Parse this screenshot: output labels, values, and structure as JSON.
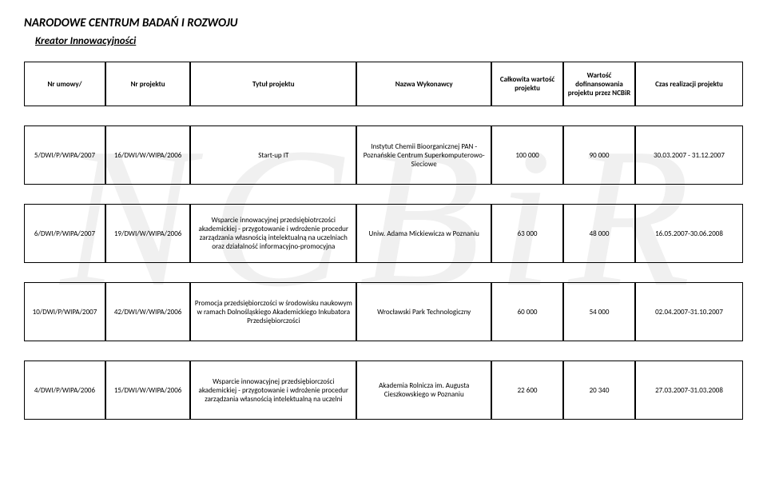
{
  "header": {
    "org": "NARODOWE CENTRUM BADAŃ I ROZWOJU",
    "subtitle": "Kreator Innowacyjności"
  },
  "watermark": "NCBiR",
  "columns": {
    "nrumowy": "Nr umowy/",
    "nrprojektu": "Nr projektu",
    "tytul": "Tytuł projektu",
    "nazwa": "Nazwa Wykonawcy",
    "calkowita": "Całkowita wartość projektu",
    "wartosc": "Wartość dofinansowania projektu przez NCBiR",
    "czas": "Czas realizacji projektu"
  },
  "rows": [
    {
      "nrumowy": "5/DWI/P/WIPA/2007",
      "nrprojektu": "16/DWI/W/WIPA/2006",
      "tytul": "Start-up IT",
      "nazwa": "Instytut Chemii Bioorganicznej PAN - Poznańskie Centrum Superkomputerowo-Sieciowe",
      "calkowita": "100 000",
      "wartosc": "90 000",
      "czas": "30.03.2007 - 31.12.2007"
    },
    {
      "nrumowy": "6/DWI/P/WIPA/2007",
      "nrprojektu": "19/DWI/W/WIPA/2006",
      "tytul": "Wsparcie innowacyjnej przedsiębiotrczości akademickiej - przygotowanie i wdrożenie procedur zarządzania własnością intelektualną na uczelniach oraz działalność informacyjno-promocyjna",
      "nazwa": "Uniw. Adama Mickiewicza w Poznaniu",
      "calkowita": "63 000",
      "wartosc": "48 000",
      "czas": "16.05.2007-30.06.2008"
    },
    {
      "nrumowy": "10/DWI/P/WIPA/2007",
      "nrprojektu": "42/DWI/W/WIPA/2006",
      "tytul": "Promocja przedsiębiorczości w środowisku naukowym w ramach Dolnośląskiego Akademickiego Inkubatora Przedsiębiorczości",
      "nazwa": "Wrocławski Park Technologiczny",
      "calkowita": "60 000",
      "wartosc": "54 000",
      "czas": "02.04.2007-31.10.2007"
    },
    {
      "nrumowy": "4/DWI/P/WIPA/2006",
      "nrprojektu": "15/DWI/W/WIPA/2006",
      "tytul": "Wsparcie innowacyjnej przedsiębiorczości akademickiej - przygotowanie i wdrożenie procedur zarządzania własnością intelektualną na uczelni",
      "nazwa": "Akademia Rolnicza im. Augusta Cieszkowskiego w Poznaniu",
      "calkowita": "22 600",
      "wartosc": "20 340",
      "czas": "27.03.2007-31.03.2008"
    }
  ],
  "styles": {
    "page_bg": "#ffffff",
    "text_color": "#000000",
    "border_color": "#000000",
    "watermark_color": "rgba(0,0,0,0.06)",
    "header_fontsize": 15,
    "subtitle_fontsize": 13,
    "table_fontsize": 9
  }
}
